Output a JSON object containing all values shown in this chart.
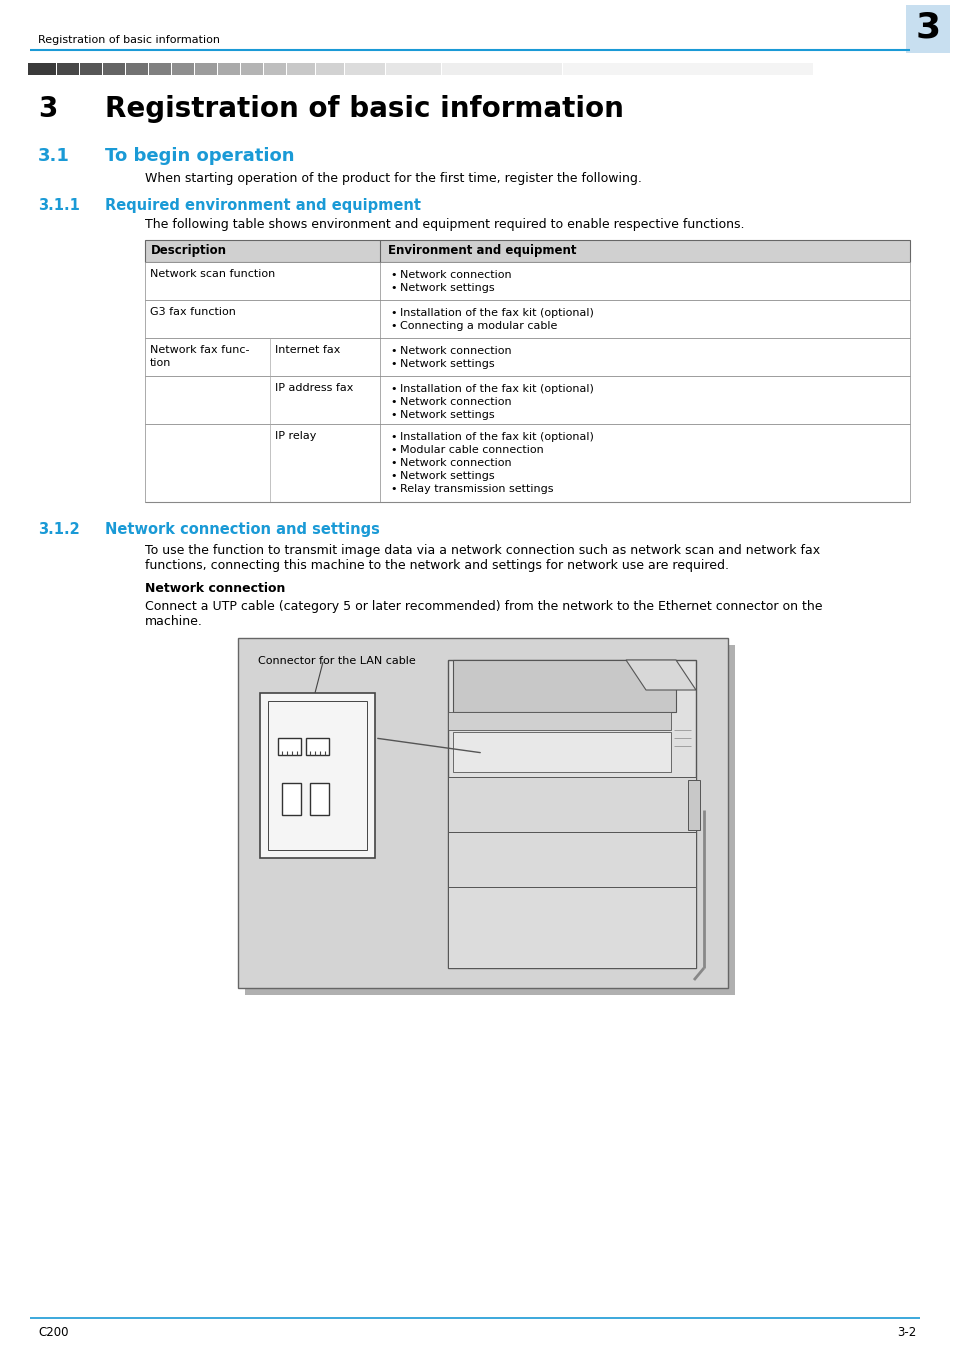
{
  "page_bg": "#ffffff",
  "header_text": "Registration of basic information",
  "header_chapter_num": "3",
  "header_chapter_bg": "#c8dff0",
  "blue_color": "#1a9ad6",
  "chapter_num": "3",
  "chapter_title": "Registration of basic information",
  "section_31_num": "3.1",
  "section_31_title": "To begin operation",
  "section_31_body": "When starting operation of the product for the first time, register the following.",
  "section_311_num": "3.1.1",
  "section_311_title": "Required environment and equipment",
  "section_311_body": "The following table shows environment and equipment required to enable respective functions.",
  "table_header_bg": "#d0d0d0",
  "table_col1_header": "Description",
  "table_col2_header": "Environment and equipment",
  "table_rows": [
    {
      "col1": "Network scan function",
      "col1b": "",
      "col2": [
        "Network connection",
        "Network settings"
      ]
    },
    {
      "col1": "G3 fax function",
      "col1b": "",
      "col2": [
        "Installation of the fax kit (optional)",
        "Connecting a modular cable"
      ]
    },
    {
      "col1": "Network fax func-\ntion",
      "col1b": "Internet fax",
      "col2": [
        "Network connection",
        "Network settings"
      ]
    },
    {
      "col1": "",
      "col1b": "IP address fax",
      "col2": [
        "Installation of the fax kit (optional)",
        "Network connection",
        "Network settings"
      ]
    },
    {
      "col1": "",
      "col1b": "IP relay",
      "col2": [
        "Installation of the fax kit (optional)",
        "Modular cable connection",
        "Network connection",
        "Network settings",
        "Relay transmission settings"
      ]
    }
  ],
  "section_312_num": "3.1.2",
  "section_312_title": "Network connection and settings",
  "section_312_body1": "To use the function to transmit image data via a network connection such as network scan and network fax",
  "section_312_body2": "functions, connecting this machine to the network and settings for network use are required.",
  "network_conn_header": "Network connection",
  "network_conn_body1": "Connect a UTP cable (category 5 or later recommended) from the network to the Ethernet connector on the",
  "network_conn_body2": "machine.",
  "image_label": "Connector for the LAN cable",
  "footer_left": "C200",
  "footer_right": "3-2"
}
